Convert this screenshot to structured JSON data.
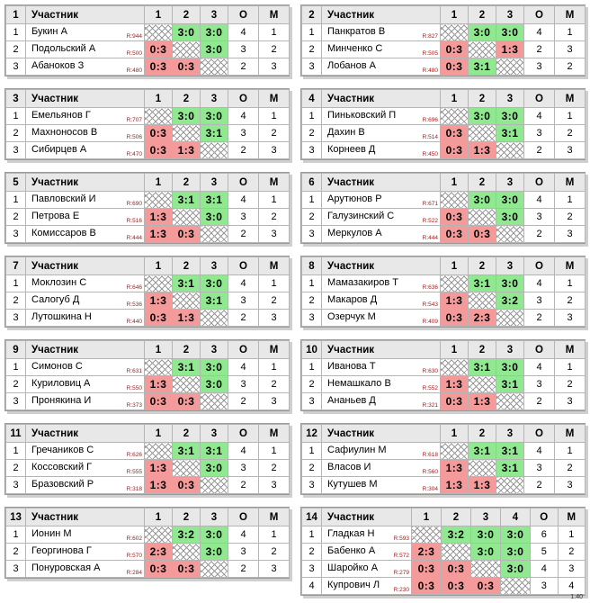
{
  "header": {
    "participant": "Участник"
  },
  "footer": {
    "version": "1.40"
  },
  "groups": [
    {
      "num": "1",
      "cols": [
        "1",
        "2",
        "3",
        "О",
        "М"
      ],
      "players": [
        {
          "n": "1",
          "name": "Букин А",
          "rating": "R:944",
          "cells": [
            "",
            "3:0",
            "3:0"
          ],
          "o": "4",
          "m": "1"
        },
        {
          "n": "2",
          "name": "Подольский А",
          "rating": "R:500",
          "cells": [
            "0:3",
            "",
            "3:0"
          ],
          "o": "3",
          "m": "2"
        },
        {
          "n": "3",
          "name": "Абаноков З",
          "rating": "R:480",
          "cells": [
            "0:3",
            "0:3",
            ""
          ],
          "o": "2",
          "m": "3"
        }
      ]
    },
    {
      "num": "2",
      "cols": [
        "1",
        "2",
        "3",
        "О",
        "М"
      ],
      "players": [
        {
          "n": "1",
          "name": "Панкратов В",
          "rating": "R:827",
          "cells": [
            "",
            "3:0",
            "3:0"
          ],
          "o": "4",
          "m": "1"
        },
        {
          "n": "2",
          "name": "Минченко С",
          "rating": "R:505",
          "cells": [
            "0:3",
            "",
            "1:3"
          ],
          "o": "2",
          "m": "3"
        },
        {
          "n": "3",
          "name": "Лобанов А",
          "rating": "R:480",
          "cells": [
            "0:3",
            "3:1",
            ""
          ],
          "o": "3",
          "m": "2"
        }
      ]
    },
    {
      "num": "3",
      "cols": [
        "1",
        "2",
        "3",
        "О",
        "М"
      ],
      "players": [
        {
          "n": "1",
          "name": "Емельянов Г",
          "rating": "R:707",
          "cells": [
            "",
            "3:0",
            "3:0"
          ],
          "o": "4",
          "m": "1"
        },
        {
          "n": "2",
          "name": "Махноносов В",
          "rating": "R:506",
          "cells": [
            "0:3",
            "",
            "3:1"
          ],
          "o": "3",
          "m": "2"
        },
        {
          "n": "3",
          "name": "Сибирцев А",
          "rating": "R:470",
          "cells": [
            "0:3",
            "1:3",
            ""
          ],
          "o": "2",
          "m": "3"
        }
      ]
    },
    {
      "num": "4",
      "cols": [
        "1",
        "2",
        "3",
        "О",
        "М"
      ],
      "players": [
        {
          "n": "1",
          "name": "Пиньковский П",
          "rating": "R:696",
          "cells": [
            "",
            "3:0",
            "3:0"
          ],
          "o": "4",
          "m": "1"
        },
        {
          "n": "2",
          "name": "Дахин В",
          "rating": "R:514",
          "cells": [
            "0:3",
            "",
            "3:1"
          ],
          "o": "3",
          "m": "2"
        },
        {
          "n": "3",
          "name": "Корнеев Д",
          "rating": "R:450",
          "cells": [
            "0:3",
            "1:3",
            ""
          ],
          "o": "2",
          "m": "3"
        }
      ]
    },
    {
      "num": "5",
      "cols": [
        "1",
        "2",
        "3",
        "О",
        "М"
      ],
      "players": [
        {
          "n": "1",
          "name": "Павловский И",
          "rating": "R:690",
          "cells": [
            "",
            "3:1",
            "3:1"
          ],
          "o": "4",
          "m": "1"
        },
        {
          "n": "2",
          "name": "Петрова Е",
          "rating": "R:516",
          "cells": [
            "1:3",
            "",
            "3:0"
          ],
          "o": "3",
          "m": "2"
        },
        {
          "n": "3",
          "name": "Комиссаров В",
          "rating": "R:444",
          "cells": [
            "1:3",
            "0:3",
            ""
          ],
          "o": "2",
          "m": "3"
        }
      ]
    },
    {
      "num": "6",
      "cols": [
        "1",
        "2",
        "3",
        "О",
        "М"
      ],
      "players": [
        {
          "n": "1",
          "name": "Арутюнов Р",
          "rating": "R:671",
          "cells": [
            "",
            "3:0",
            "3:0"
          ],
          "o": "4",
          "m": "1"
        },
        {
          "n": "2",
          "name": "Галузинский С",
          "rating": "R:522",
          "cells": [
            "0:3",
            "",
            "3:0"
          ],
          "o": "3",
          "m": "2"
        },
        {
          "n": "3",
          "name": "Меркулов А",
          "rating": "R:444",
          "cells": [
            "0:3",
            "0:3",
            ""
          ],
          "o": "2",
          "m": "3"
        }
      ]
    },
    {
      "num": "7",
      "cols": [
        "1",
        "2",
        "3",
        "О",
        "М"
      ],
      "players": [
        {
          "n": "1",
          "name": "Моклозин С",
          "rating": "R:646",
          "cells": [
            "",
            "3:1",
            "3:0"
          ],
          "o": "4",
          "m": "1"
        },
        {
          "n": "2",
          "name": "Салогуб Д",
          "rating": "R:536",
          "cells": [
            "1:3",
            "",
            "3:1"
          ],
          "o": "3",
          "m": "2"
        },
        {
          "n": "3",
          "name": "Лутошкина Н",
          "rating": "R:440",
          "cells": [
            "0:3",
            "1:3",
            ""
          ],
          "o": "2",
          "m": "3"
        }
      ]
    },
    {
      "num": "8",
      "cols": [
        "1",
        "2",
        "3",
        "О",
        "М"
      ],
      "players": [
        {
          "n": "1",
          "name": "Мамазакиров Т",
          "rating": "R:636",
          "cells": [
            "",
            "3:1",
            "3:0"
          ],
          "o": "4",
          "m": "1"
        },
        {
          "n": "2",
          "name": "Макаров Д",
          "rating": "R:543",
          "cells": [
            "1:3",
            "",
            "3:2"
          ],
          "o": "3",
          "m": "2"
        },
        {
          "n": "3",
          "name": "Озерчук М",
          "rating": "R:409",
          "cells": [
            "0:3",
            "2:3",
            ""
          ],
          "o": "2",
          "m": "3"
        }
      ]
    },
    {
      "num": "9",
      "cols": [
        "1",
        "2",
        "3",
        "О",
        "М"
      ],
      "players": [
        {
          "n": "1",
          "name": "Симонов С",
          "rating": "R:631",
          "cells": [
            "",
            "3:1",
            "3:0"
          ],
          "o": "4",
          "m": "1"
        },
        {
          "n": "2",
          "name": "Куриловиц А",
          "rating": "R:550",
          "cells": [
            "1:3",
            "",
            "3:0"
          ],
          "o": "3",
          "m": "2"
        },
        {
          "n": "3",
          "name": "Пронякина И",
          "rating": "R:373",
          "cells": [
            "0:3",
            "0:3",
            ""
          ],
          "o": "2",
          "m": "3"
        }
      ]
    },
    {
      "num": "10",
      "cols": [
        "1",
        "2",
        "3",
        "О",
        "М"
      ],
      "players": [
        {
          "n": "1",
          "name": "Иванова Т",
          "rating": "R:630",
          "cells": [
            "",
            "3:1",
            "3:0"
          ],
          "o": "4",
          "m": "1"
        },
        {
          "n": "2",
          "name": "Немашкало В",
          "rating": "R:552",
          "cells": [
            "1:3",
            "",
            "3:1"
          ],
          "o": "3",
          "m": "2"
        },
        {
          "n": "3",
          "name": "Ананьев Д",
          "rating": "R:321",
          "cells": [
            "0:3",
            "1:3",
            ""
          ],
          "o": "2",
          "m": "3"
        }
      ]
    },
    {
      "num": "11",
      "cols": [
        "1",
        "2",
        "3",
        "О",
        "М"
      ],
      "players": [
        {
          "n": "1",
          "name": "Гречаников С",
          "rating": "R:626",
          "cells": [
            "",
            "3:1",
            "3:1"
          ],
          "o": "4",
          "m": "1"
        },
        {
          "n": "2",
          "name": "Коссовский Г",
          "rating": "R:555",
          "cells": [
            "1:3",
            "",
            "3:0"
          ],
          "o": "3",
          "m": "2"
        },
        {
          "n": "3",
          "name": "Бразовский Р",
          "rating": "R:318",
          "cells": [
            "1:3",
            "0:3",
            ""
          ],
          "o": "2",
          "m": "3"
        }
      ]
    },
    {
      "num": "12",
      "cols": [
        "1",
        "2",
        "3",
        "О",
        "М"
      ],
      "players": [
        {
          "n": "1",
          "name": "Сафиулин М",
          "rating": "R:618",
          "cells": [
            "",
            "3:1",
            "3:1"
          ],
          "o": "4",
          "m": "1"
        },
        {
          "n": "2",
          "name": "Власов И",
          "rating": "R:560",
          "cells": [
            "1:3",
            "",
            "3:1"
          ],
          "o": "3",
          "m": "2"
        },
        {
          "n": "3",
          "name": "Кутушев М",
          "rating": "R:304",
          "cells": [
            "1:3",
            "1:3",
            ""
          ],
          "o": "2",
          "m": "3"
        }
      ]
    },
    {
      "num": "13",
      "cols": [
        "1",
        "2",
        "3",
        "О",
        "М"
      ],
      "players": [
        {
          "n": "1",
          "name": "Ионин М",
          "rating": "R:602",
          "cells": [
            "",
            "3:2",
            "3:0"
          ],
          "o": "4",
          "m": "1"
        },
        {
          "n": "2",
          "name": "Георгинова Г",
          "rating": "R:570",
          "cells": [
            "2:3",
            "",
            "3:0"
          ],
          "o": "3",
          "m": "2"
        },
        {
          "n": "3",
          "name": "Понуровская А",
          "rating": "R:284",
          "cells": [
            "0:3",
            "0:3",
            ""
          ],
          "o": "2",
          "m": "3"
        }
      ]
    },
    {
      "num": "14",
      "cols": [
        "1",
        "2",
        "3",
        "4",
        "О",
        "М"
      ],
      "players": [
        {
          "n": "1",
          "name": "Гладкая Н",
          "rating": "R:593",
          "cells": [
            "",
            "3:2",
            "3:0",
            "3:0"
          ],
          "o": "6",
          "m": "1"
        },
        {
          "n": "2",
          "name": "Бабенко А",
          "rating": "R:572",
          "cells": [
            "2:3",
            "",
            "3:0",
            "3:0"
          ],
          "o": "5",
          "m": "2"
        },
        {
          "n": "3",
          "name": "Шаройко А",
          "rating": "R:279",
          "cells": [
            "0:3",
            "0:3",
            "",
            "3:0"
          ],
          "o": "4",
          "m": "3"
        },
        {
          "n": "4",
          "name": "Купрович Л",
          "rating": "R:230",
          "cells": [
            "0:3",
            "0:3",
            "0:3",
            ""
          ],
          "o": "3",
          "m": "4"
        }
      ]
    }
  ]
}
